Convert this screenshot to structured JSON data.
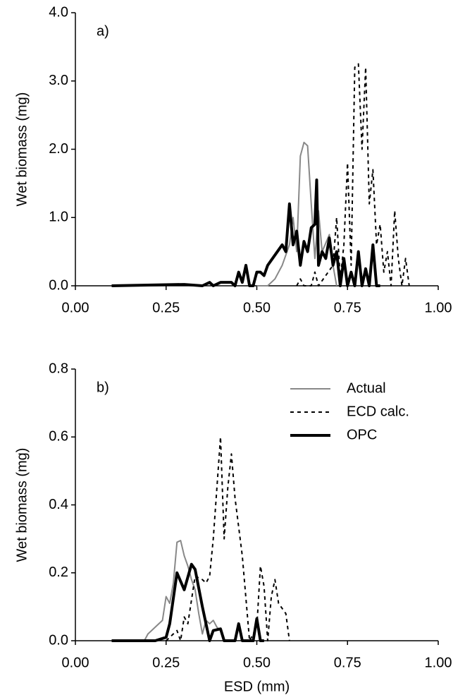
{
  "chart_data": [
    {
      "type": "line",
      "annotation": "a)",
      "y_label": "Wet biomass (mg)",
      "xlim": [
        0,
        1
      ],
      "ylim": [
        0,
        4
      ],
      "xticks": [
        {
          "value": 0,
          "label": "0.00"
        },
        {
          "value": 0.25,
          "label": "0.25"
        },
        {
          "value": 0.5,
          "label": "0.50"
        },
        {
          "value": 0.75,
          "label": "0.75"
        },
        {
          "value": 1,
          "label": "1.00"
        }
      ],
      "yticks": [
        {
          "value": 0,
          "label": "0.0"
        },
        {
          "value": 1,
          "label": "1.0"
        },
        {
          "value": 2,
          "label": "2.0"
        },
        {
          "value": 3,
          "label": "3.0"
        },
        {
          "value": 4,
          "label": "4.0"
        }
      ],
      "series": [
        {
          "color": "#888888",
          "linestyle": "solid",
          "linewidth": 2,
          "x": [
            0.5,
            0.53,
            0.55,
            0.57,
            0.59,
            0.6,
            0.61,
            0.62,
            0.63,
            0.64,
            0.65,
            0.66,
            0.67,
            0.68,
            0.7,
            0.71,
            0.72
          ],
          "values": [
            0,
            0,
            0.1,
            0.3,
            0.6,
            1.0,
            0.5,
            1.9,
            2.1,
            2.05,
            1.2,
            0.4,
            1.1,
            0.5,
            0.75,
            0.3,
            0
          ]
        },
        {
          "color": "#000000",
          "linestyle": "dotted",
          "linewidth": 2,
          "x": [
            0.61,
            0.62,
            0.63,
            0.65,
            0.66,
            0.67,
            0.71,
            0.72,
            0.73,
            0.74,
            0.75,
            0.76,
            0.77,
            0.78,
            0.79,
            0.8,
            0.81,
            0.82,
            0.83,
            0.84,
            0.85,
            0.86,
            0.87,
            0.88,
            0.89,
            0.9,
            0.91,
            0.92
          ],
          "values": [
            0,
            0.1,
            0,
            0,
            0.2,
            0,
            0.3,
            1.0,
            0.1,
            0.6,
            1.8,
            0.3,
            3.2,
            3.25,
            2.0,
            3.2,
            1.2,
            1.7,
            0.6,
            0.9,
            0.2,
            0.5,
            0,
            1.1,
            0.4,
            0,
            0.4,
            0
          ]
        },
        {
          "color": "#000000",
          "linestyle": "solid",
          "linewidth": 4,
          "x": [
            0.1,
            0.3,
            0.35,
            0.37,
            0.38,
            0.4,
            0.43,
            0.44,
            0.45,
            0.46,
            0.47,
            0.48,
            0.49,
            0.5,
            0.51,
            0.52,
            0.53,
            0.55,
            0.57,
            0.58,
            0.59,
            0.6,
            0.61,
            0.62,
            0.63,
            0.64,
            0.65,
            0.66,
            0.665,
            0.67,
            0.68,
            0.69,
            0.7,
            0.71,
            0.72,
            0.73,
            0.74,
            0.75,
            0.76,
            0.77,
            0.78,
            0.79,
            0.8,
            0.81,
            0.82,
            0.83,
            0.84
          ],
          "values": [
            0,
            0.02,
            0,
            0.05,
            0,
            0.05,
            0.05,
            0,
            0.2,
            0.05,
            0.3,
            0,
            0,
            0.2,
            0.2,
            0.15,
            0.3,
            0.45,
            0.6,
            0.5,
            1.2,
            0.6,
            0.8,
            0.3,
            0.65,
            0.5,
            0.85,
            0.9,
            1.55,
            0.3,
            0.5,
            0.4,
            0.7,
            0.3,
            0.5,
            0,
            0.4,
            0,
            0.2,
            0,
            0.5,
            0,
            0.25,
            0,
            0.6,
            0,
            0
          ]
        }
      ]
    },
    {
      "type": "line",
      "annotation": "b)",
      "y_label": "Wet biomass (mg)",
      "x_label": "ESD (mm)",
      "legend": "upper right",
      "xlim": [
        0,
        1
      ],
      "ylim": [
        0,
        0.8
      ],
      "xticks": [
        {
          "value": 0,
          "label": "0.00"
        },
        {
          "value": 0.25,
          "label": "0.25"
        },
        {
          "value": 0.5,
          "label": "0.50"
        },
        {
          "value": 0.75,
          "label": "0.75"
        },
        {
          "value": 1,
          "label": "1.00"
        }
      ],
      "yticks": [
        {
          "value": 0,
          "label": "0.0"
        },
        0.2,
        0.4,
        0.6,
        0.8
      ],
      "series": [
        {
          "name": "Actual",
          "color": "#888888",
          "linestyle": "solid",
          "linewidth": 2,
          "x": [
            0.1,
            0.19,
            0.2,
            0.22,
            0.24,
            0.25,
            0.26,
            0.27,
            0.28,
            0.29,
            0.3,
            0.31,
            0.32,
            0.33,
            0.34,
            0.35,
            0.36,
            0.37,
            0.38,
            0.39,
            0.4,
            0.41,
            0.42
          ],
          "values": [
            0,
            0,
            0.02,
            0.04,
            0.06,
            0.13,
            0.11,
            0.17,
            0.29,
            0.295,
            0.25,
            0.22,
            0.18,
            0.15,
            0.08,
            0.02,
            0.06,
            0.05,
            0.06,
            0.04,
            0.03,
            0,
            0
          ]
        },
        {
          "name": "ECD calc.",
          "color": "#000000",
          "linestyle": "dotted",
          "linewidth": 2,
          "x": [
            0.25,
            0.27,
            0.28,
            0.29,
            0.3,
            0.31,
            0.33,
            0.35,
            0.36,
            0.37,
            0.38,
            0.4,
            0.41,
            0.42,
            0.43,
            0.44,
            0.46,
            0.48,
            0.5,
            0.51,
            0.52,
            0.53,
            0.54,
            0.55,
            0.56,
            0.58,
            0.59
          ],
          "values": [
            0,
            0.02,
            0.03,
            0,
            0.07,
            0.05,
            0.19,
            0.18,
            0.17,
            0.19,
            0.3,
            0.6,
            0.3,
            0.45,
            0.55,
            0.42,
            0.25,
            0,
            0.04,
            0.22,
            0.16,
            0,
            0.13,
            0.18,
            0.11,
            0.08,
            0
          ]
        },
        {
          "name": "OPC",
          "color": "#000000",
          "linestyle": "solid",
          "linewidth": 4,
          "x": [
            0.1,
            0.22,
            0.25,
            0.26,
            0.28,
            0.3,
            0.32,
            0.33,
            0.35,
            0.37,
            0.38,
            0.4,
            0.41,
            0.44,
            0.45,
            0.46,
            0.49,
            0.5,
            0.51,
            0.52
          ],
          "values": [
            0,
            0,
            0.01,
            0.05,
            0.2,
            0.15,
            0.225,
            0.21,
            0.1,
            0,
            0.03,
            0.035,
            0,
            0,
            0.05,
            0,
            0,
            0.065,
            0,
            0
          ]
        }
      ]
    }
  ]
}
